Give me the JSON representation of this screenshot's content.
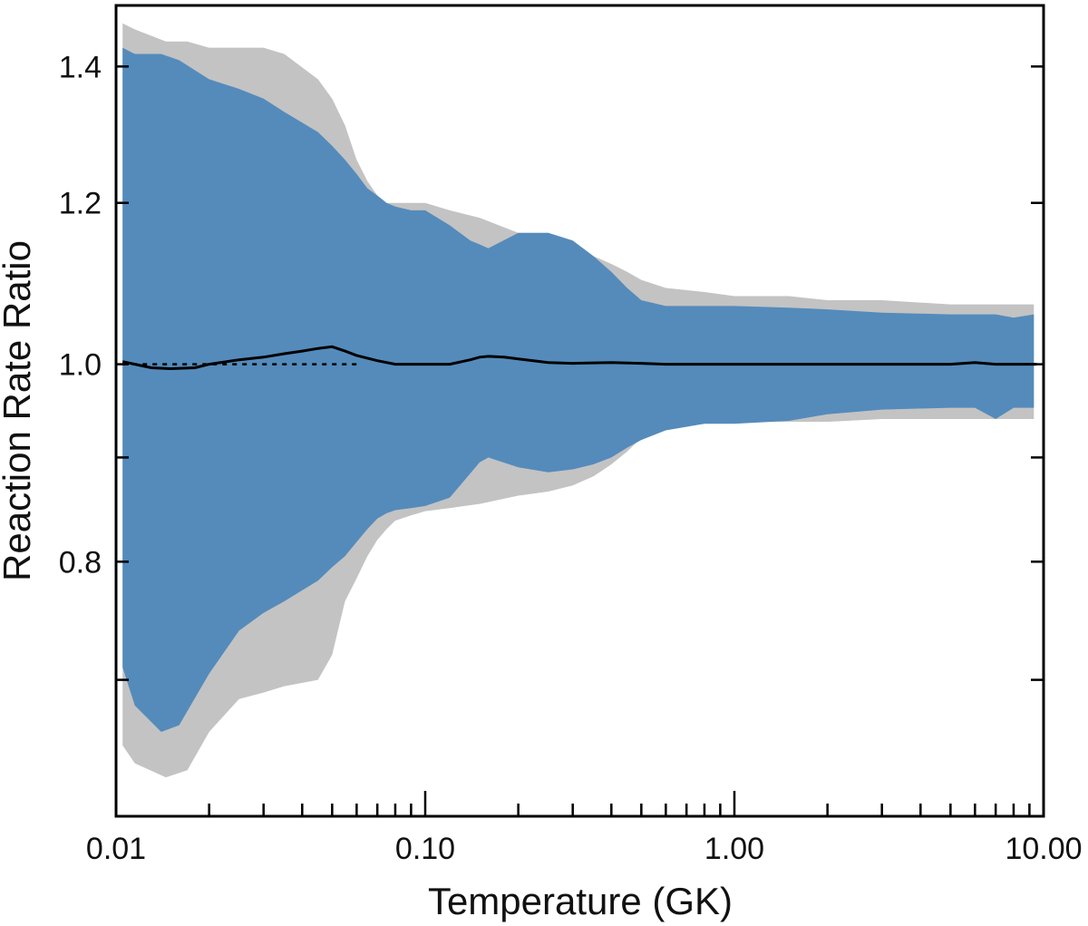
{
  "chart_data": {
    "type": "area",
    "title": "",
    "xlabel": "Temperature (GK)",
    "ylabel": "Reaction Rate Ratio",
    "x_scale": "log",
    "y_scale": "log",
    "xlim": [
      0.01,
      10.0
    ],
    "ylim": [
      0.6,
      1.5
    ],
    "x_ticks": [
      {
        "value": 0.01,
        "label": "0.01"
      },
      {
        "value": 0.1,
        "label": "0.10"
      },
      {
        "value": 1.0,
        "label": "1.00"
      },
      {
        "value": 10.0,
        "label": "10.00"
      }
    ],
    "y_ticks": [
      {
        "value": 0.8,
        "label": "0.8"
      },
      {
        "value": 1.0,
        "label": "1.0"
      },
      {
        "value": 1.2,
        "label": "1.2"
      },
      {
        "value": 1.4,
        "label": "1.4"
      }
    ],
    "y_minor_ticks": [
      0.7,
      0.9
    ],
    "colors": {
      "outer_band": "#c3c3c3",
      "inner_band": "#548bbb",
      "line": "#000000"
    },
    "series": [
      {
        "name": "outer band (grey)",
        "x": [
          0.0105,
          0.0115,
          0.0145,
          0.017,
          0.02,
          0.025,
          0.03,
          0.035,
          0.045,
          0.05,
          0.055,
          0.06,
          0.065,
          0.07,
          0.075,
          0.08,
          0.09,
          0.1,
          0.12,
          0.15,
          0.2,
          0.25,
          0.3,
          0.35,
          0.4,
          0.45,
          0.5,
          0.6,
          0.8,
          1.0,
          1.5,
          2.0,
          3.0,
          5.0,
          6.0,
          7.0,
          8.0,
          9.3
        ],
        "upper": [
          1.47,
          1.46,
          1.44,
          1.44,
          1.43,
          1.43,
          1.43,
          1.42,
          1.38,
          1.35,
          1.31,
          1.26,
          1.23,
          1.21,
          1.2,
          1.2,
          1.2,
          1.2,
          1.19,
          1.18,
          1.16,
          1.16,
          1.15,
          1.13,
          1.12,
          1.11,
          1.1,
          1.09,
          1.085,
          1.08,
          1.08,
          1.075,
          1.075,
          1.07,
          1.07,
          1.07,
          1.07,
          1.07
        ],
        "lower": [
          0.65,
          0.637,
          0.627,
          0.632,
          0.66,
          0.685,
          0.69,
          0.695,
          0.7,
          0.72,
          0.765,
          0.785,
          0.805,
          0.82,
          0.83,
          0.838,
          0.843,
          0.847,
          0.85,
          0.854,
          0.862,
          0.866,
          0.872,
          0.881,
          0.893,
          0.906,
          0.92,
          0.93,
          0.935,
          0.937,
          0.937,
          0.937,
          0.94,
          0.94,
          0.94,
          0.94,
          0.94,
          0.94
        ]
      },
      {
        "name": "inner band (blue)",
        "x": [
          0.0105,
          0.0115,
          0.014,
          0.016,
          0.02,
          0.025,
          0.03,
          0.035,
          0.045,
          0.05,
          0.055,
          0.06,
          0.065,
          0.07,
          0.075,
          0.08,
          0.09,
          0.1,
          0.12,
          0.14,
          0.15,
          0.16,
          0.2,
          0.25,
          0.3,
          0.35,
          0.4,
          0.45,
          0.5,
          0.6,
          0.8,
          1.0,
          1.5,
          2.0,
          3.0,
          5.0,
          6.0,
          7.0,
          8.0,
          9.3
        ],
        "upper": [
          1.43,
          1.42,
          1.42,
          1.41,
          1.38,
          1.365,
          1.35,
          1.33,
          1.3,
          1.28,
          1.26,
          1.24,
          1.22,
          1.21,
          1.2,
          1.195,
          1.19,
          1.19,
          1.17,
          1.15,
          1.145,
          1.14,
          1.16,
          1.16,
          1.15,
          1.13,
          1.11,
          1.09,
          1.075,
          1.068,
          1.068,
          1.068,
          1.066,
          1.064,
          1.06,
          1.058,
          1.058,
          1.058,
          1.054,
          1.058
        ],
        "lower": [
          0.71,
          0.68,
          0.66,
          0.665,
          0.705,
          0.74,
          0.755,
          0.765,
          0.783,
          0.795,
          0.805,
          0.818,
          0.83,
          0.84,
          0.845,
          0.848,
          0.85,
          0.852,
          0.86,
          0.884,
          0.895,
          0.9,
          0.89,
          0.885,
          0.888,
          0.893,
          0.9,
          0.91,
          0.918,
          0.928,
          0.935,
          0.935,
          0.938,
          0.945,
          0.95,
          0.952,
          0.952,
          0.94,
          0.952,
          0.952
        ]
      },
      {
        "name": "median ratio",
        "x": [
          0.0105,
          0.0115,
          0.013,
          0.015,
          0.018,
          0.02,
          0.025,
          0.03,
          0.035,
          0.04,
          0.045,
          0.05,
          0.055,
          0.06,
          0.07,
          0.08,
          0.1,
          0.12,
          0.14,
          0.15,
          0.16,
          0.18,
          0.2,
          0.25,
          0.3,
          0.4,
          0.5,
          0.6,
          1.0,
          2.0,
          5.0,
          6.0,
          7.0,
          9.5
        ],
        "y": [
          1.003,
          1.0,
          0.996,
          0.995,
          0.996,
          1.0,
          1.005,
          1.008,
          1.012,
          1.015,
          1.018,
          1.02,
          1.015,
          1.01,
          1.004,
          1.0,
          1.0,
          1.0,
          1.005,
          1.008,
          1.009,
          1.008,
          1.006,
          1.002,
          1.001,
          1.002,
          1.001,
          1.0,
          1.0,
          1.0,
          1.0,
          1.002,
          1.0,
          1.0
        ]
      },
      {
        "name": "reference ratio 1.0 (dotted)",
        "x": [
          0.0105,
          0.06
        ],
        "y": [
          1.0,
          1.0
        ]
      }
    ]
  }
}
